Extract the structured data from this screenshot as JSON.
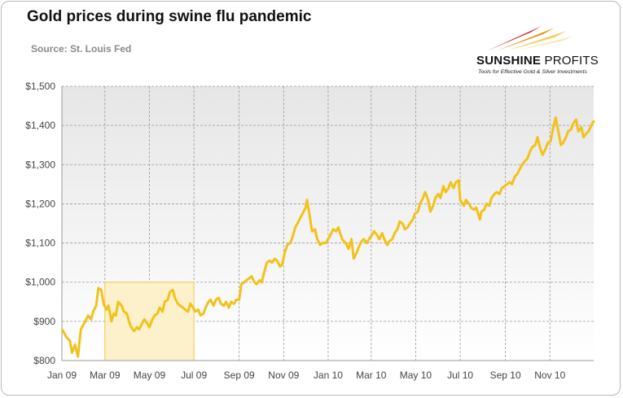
{
  "title": "Gold prices during swine flu pandemic",
  "source": "Source: St. Louis Fed",
  "logo": {
    "name_bold": "SUNSHINE",
    "name_light": " PROFITS",
    "tagline": "Tools for Effective Gold & Silver Investments"
  },
  "colors": {
    "line": "#f2c21b",
    "highlight_fill": "#fdf1cc",
    "highlight_stroke": "#f0c84a",
    "plot_bg_top": "#e6e6e6",
    "plot_bg_bottom": "#ffffff",
    "grid": "#9a9a9a"
  },
  "chart_data": {
    "type": "line",
    "title": "Gold prices during swine flu pandemic",
    "subtitle": "Source: St. Louis Fed",
    "xlabel": "",
    "ylabel": "",
    "x_axis": "date",
    "xlim": [
      "2009-01-01",
      "2010-12-31"
    ],
    "ylim": [
      800,
      1500
    ],
    "yticks": [
      800,
      900,
      1000,
      1100,
      1200,
      1300,
      1400,
      1500
    ],
    "ytick_labels": [
      "$800",
      "$900",
      "$1,000",
      "$1,100",
      "$1,200",
      "$1,300",
      "$1,400",
      "$1,500"
    ],
    "xticks": [
      "2009-01-01",
      "2009-03-01",
      "2009-05-01",
      "2009-07-01",
      "2009-09-01",
      "2009-11-01",
      "2010-01-01",
      "2010-03-01",
      "2010-05-01",
      "2010-07-01",
      "2010-09-01",
      "2010-11-01"
    ],
    "xtick_labels": [
      "Jan 09",
      "Mar 09",
      "May 09",
      "Jul 09",
      "Sep 09",
      "Nov 09",
      "Jan 10",
      "Mar 10",
      "May 10",
      "Jul 10",
      "Sep 10",
      "Nov 10"
    ],
    "grid": true,
    "highlight": {
      "x": [
        "2009-03-01",
        "2009-07-01"
      ],
      "y": [
        800,
        1000
      ]
    },
    "series": [
      {
        "points": [
          [
            "2009-01-02",
            878
          ],
          [
            "2009-01-07",
            860
          ],
          [
            "2009-01-12",
            850
          ],
          [
            "2009-01-15",
            820
          ],
          [
            "2009-01-19",
            840
          ],
          [
            "2009-01-23",
            810
          ],
          [
            "2009-01-27",
            880
          ],
          [
            "2009-02-02",
            900
          ],
          [
            "2009-02-06",
            915
          ],
          [
            "2009-02-10",
            905
          ],
          [
            "2009-02-13",
            925
          ],
          [
            "2009-02-17",
            940
          ],
          [
            "2009-02-20",
            985
          ],
          [
            "2009-02-24",
            980
          ],
          [
            "2009-02-27",
            945
          ],
          [
            "2009-03-03",
            930
          ],
          [
            "2009-03-06",
            940
          ],
          [
            "2009-03-10",
            900
          ],
          [
            "2009-03-13",
            920
          ],
          [
            "2009-03-16",
            915
          ],
          [
            "2009-03-19",
            950
          ],
          [
            "2009-03-24",
            940
          ],
          [
            "2009-03-27",
            925
          ],
          [
            "2009-03-31",
            920
          ],
          [
            "2009-04-03",
            900
          ],
          [
            "2009-04-06",
            885
          ],
          [
            "2009-04-10",
            875
          ],
          [
            "2009-04-14",
            885
          ],
          [
            "2009-04-17",
            880
          ],
          [
            "2009-04-21",
            895
          ],
          [
            "2009-04-24",
            905
          ],
          [
            "2009-04-28",
            895
          ],
          [
            "2009-05-01",
            885
          ],
          [
            "2009-05-05",
            905
          ],
          [
            "2009-05-08",
            915
          ],
          [
            "2009-05-12",
            920
          ],
          [
            "2009-05-15",
            935
          ],
          [
            "2009-05-19",
            925
          ],
          [
            "2009-05-22",
            950
          ],
          [
            "2009-05-26",
            955
          ],
          [
            "2009-05-29",
            975
          ],
          [
            "2009-06-02",
            980
          ],
          [
            "2009-06-05",
            960
          ],
          [
            "2009-06-09",
            945
          ],
          [
            "2009-06-12",
            940
          ],
          [
            "2009-06-16",
            935
          ],
          [
            "2009-06-19",
            930
          ],
          [
            "2009-06-23",
            925
          ],
          [
            "2009-06-26",
            945
          ],
          [
            "2009-06-30",
            935
          ],
          [
            "2009-07-03",
            925
          ],
          [
            "2009-07-07",
            930
          ],
          [
            "2009-07-10",
            915
          ],
          [
            "2009-07-14",
            920
          ],
          [
            "2009-07-17",
            935
          ],
          [
            "2009-07-21",
            950
          ],
          [
            "2009-07-24",
            955
          ],
          [
            "2009-07-28",
            940
          ],
          [
            "2009-07-31",
            955
          ],
          [
            "2009-08-04",
            960
          ],
          [
            "2009-08-07",
            945
          ],
          [
            "2009-08-11",
            940
          ],
          [
            "2009-08-14",
            950
          ],
          [
            "2009-08-18",
            935
          ],
          [
            "2009-08-21",
            950
          ],
          [
            "2009-08-25",
            945
          ],
          [
            "2009-08-28",
            955
          ],
          [
            "2009-09-01",
            955
          ],
          [
            "2009-09-04",
            995
          ],
          [
            "2009-09-08",
            1000
          ],
          [
            "2009-09-11",
            1005
          ],
          [
            "2009-09-15",
            1010
          ],
          [
            "2009-09-18",
            1015
          ],
          [
            "2009-09-22",
            1000
          ],
          [
            "2009-09-25",
            995
          ],
          [
            "2009-09-29",
            1005
          ],
          [
            "2009-10-02",
            1000
          ],
          [
            "2009-10-06",
            1030
          ],
          [
            "2009-10-09",
            1050
          ],
          [
            "2009-10-13",
            1055
          ],
          [
            "2009-10-16",
            1050
          ],
          [
            "2009-10-20",
            1060
          ],
          [
            "2009-10-23",
            1055
          ],
          [
            "2009-10-27",
            1040
          ],
          [
            "2009-10-30",
            1045
          ],
          [
            "2009-11-03",
            1080
          ],
          [
            "2009-11-06",
            1095
          ],
          [
            "2009-11-10",
            1100
          ],
          [
            "2009-11-13",
            1115
          ],
          [
            "2009-11-17",
            1140
          ],
          [
            "2009-11-20",
            1150
          ],
          [
            "2009-11-24",
            1165
          ],
          [
            "2009-11-27",
            1175
          ],
          [
            "2009-12-01",
            1190
          ],
          [
            "2009-12-03",
            1210
          ],
          [
            "2009-12-07",
            1165
          ],
          [
            "2009-12-10",
            1130
          ],
          [
            "2009-12-14",
            1135
          ],
          [
            "2009-12-17",
            1110
          ],
          [
            "2009-12-21",
            1095
          ],
          [
            "2009-12-24",
            1100
          ],
          [
            "2009-12-29",
            1100
          ],
          [
            "2010-01-04",
            1120
          ],
          [
            "2010-01-08",
            1135
          ],
          [
            "2010-01-12",
            1130
          ],
          [
            "2010-01-15",
            1140
          ],
          [
            "2010-01-20",
            1110
          ],
          [
            "2010-01-25",
            1100
          ],
          [
            "2010-01-29",
            1085
          ],
          [
            "2010-02-02",
            1110
          ],
          [
            "2010-02-05",
            1060
          ],
          [
            "2010-02-09",
            1075
          ],
          [
            "2010-02-12",
            1090
          ],
          [
            "2010-02-16",
            1105
          ],
          [
            "2010-02-19",
            1110
          ],
          [
            "2010-02-23",
            1100
          ],
          [
            "2010-02-26",
            1110
          ],
          [
            "2010-03-02",
            1120
          ],
          [
            "2010-03-05",
            1130
          ],
          [
            "2010-03-09",
            1120
          ],
          [
            "2010-03-12",
            1110
          ],
          [
            "2010-03-16",
            1125
          ],
          [
            "2010-03-19",
            1110
          ],
          [
            "2010-03-23",
            1095
          ],
          [
            "2010-03-26",
            1105
          ],
          [
            "2010-03-30",
            1110
          ],
          [
            "2010-04-02",
            1125
          ],
          [
            "2010-04-06",
            1135
          ],
          [
            "2010-04-09",
            1155
          ],
          [
            "2010-04-13",
            1150
          ],
          [
            "2010-04-16",
            1135
          ],
          [
            "2010-04-20",
            1140
          ],
          [
            "2010-04-23",
            1150
          ],
          [
            "2010-04-27",
            1160
          ],
          [
            "2010-04-30",
            1175
          ],
          [
            "2010-05-04",
            1180
          ],
          [
            "2010-05-07",
            1200
          ],
          [
            "2010-05-11",
            1215
          ],
          [
            "2010-05-14",
            1230
          ],
          [
            "2010-05-18",
            1210
          ],
          [
            "2010-05-21",
            1180
          ],
          [
            "2010-05-25",
            1195
          ],
          [
            "2010-05-28",
            1215
          ],
          [
            "2010-06-01",
            1225
          ],
          [
            "2010-06-04",
            1215
          ],
          [
            "2010-06-08",
            1245
          ],
          [
            "2010-06-11",
            1230
          ],
          [
            "2010-06-15",
            1240
          ],
          [
            "2010-06-18",
            1255
          ],
          [
            "2010-06-22",
            1240
          ],
          [
            "2010-06-25",
            1255
          ],
          [
            "2010-06-29",
            1260
          ],
          [
            "2010-07-01",
            1210
          ],
          [
            "2010-07-06",
            1195
          ],
          [
            "2010-07-09",
            1210
          ],
          [
            "2010-07-13",
            1200
          ],
          [
            "2010-07-16",
            1190
          ],
          [
            "2010-07-20",
            1185
          ],
          [
            "2010-07-23",
            1190
          ],
          [
            "2010-07-28",
            1160
          ],
          [
            "2010-07-30",
            1180
          ],
          [
            "2010-08-03",
            1185
          ],
          [
            "2010-08-06",
            1200
          ],
          [
            "2010-08-10",
            1195
          ],
          [
            "2010-08-13",
            1215
          ],
          [
            "2010-08-17",
            1225
          ],
          [
            "2010-08-20",
            1230
          ],
          [
            "2010-08-24",
            1225
          ],
          [
            "2010-08-27",
            1240
          ],
          [
            "2010-08-31",
            1245
          ],
          [
            "2010-09-03",
            1250
          ],
          [
            "2010-09-07",
            1255
          ],
          [
            "2010-09-10",
            1250
          ],
          [
            "2010-09-14",
            1270
          ],
          [
            "2010-09-17",
            1275
          ],
          [
            "2010-09-21",
            1290
          ],
          [
            "2010-09-24",
            1300
          ],
          [
            "2010-09-28",
            1310
          ],
          [
            "2010-10-01",
            1315
          ],
          [
            "2010-10-05",
            1335
          ],
          [
            "2010-10-08",
            1345
          ],
          [
            "2010-10-12",
            1350
          ],
          [
            "2010-10-15",
            1370
          ],
          [
            "2010-10-19",
            1340
          ],
          [
            "2010-10-22",
            1325
          ],
          [
            "2010-10-26",
            1340
          ],
          [
            "2010-10-29",
            1355
          ],
          [
            "2010-11-02",
            1360
          ],
          [
            "2010-11-05",
            1390
          ],
          [
            "2010-11-09",
            1420
          ],
          [
            "2010-11-12",
            1390
          ],
          [
            "2010-11-16",
            1350
          ],
          [
            "2010-11-19",
            1355
          ],
          [
            "2010-11-23",
            1370
          ],
          [
            "2010-11-26",
            1385
          ],
          [
            "2010-11-30",
            1390
          ],
          [
            "2010-12-03",
            1405
          ],
          [
            "2010-12-07",
            1415
          ],
          [
            "2010-12-10",
            1385
          ],
          [
            "2010-12-14",
            1395
          ],
          [
            "2010-12-17",
            1370
          ],
          [
            "2010-12-21",
            1380
          ],
          [
            "2010-12-24",
            1385
          ],
          [
            "2010-12-29",
            1405
          ],
          [
            "2010-12-31",
            1410
          ]
        ]
      }
    ]
  }
}
